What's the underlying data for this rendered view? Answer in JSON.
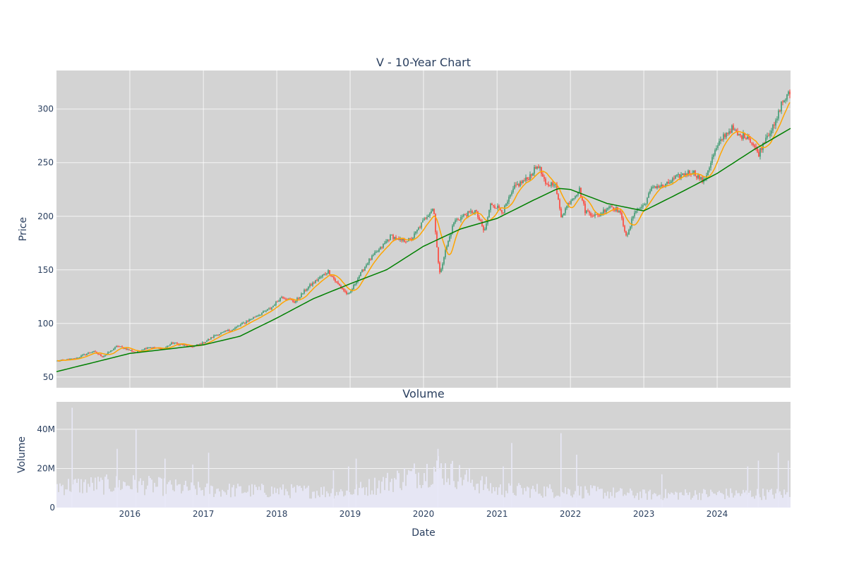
{
  "chart_data": [
    {
      "type": "candlestick",
      "title": "V - 10-Year Chart",
      "ylabel": "Price",
      "ylim": [
        40,
        336
      ],
      "xlim": [
        "2015-01-01",
        "2024-12-31"
      ],
      "y_ticks": [
        50,
        100,
        150,
        200,
        250,
        300
      ],
      "y_tick_labels": [
        "50",
        "100",
        "150",
        "200",
        "250",
        "300"
      ],
      "grid": true,
      "colors": {
        "background": "#d3d3d3",
        "up": "#3d9970",
        "down": "#ff4136",
        "short_ma": "#ffa500",
        "long_ma": "#008000"
      },
      "price_path": [
        [
          "2015-01-01",
          65
        ],
        [
          "2015-04-01",
          67
        ],
        [
          "2015-07-01",
          74
        ],
        [
          "2015-08-20",
          69
        ],
        [
          "2015-11-01",
          79
        ],
        [
          "2016-02-01",
          73
        ],
        [
          "2016-04-01",
          78
        ],
        [
          "2016-06-15",
          76
        ],
        [
          "2016-08-01",
          82
        ],
        [
          "2016-11-01",
          78
        ],
        [
          "2017-01-01",
          82
        ],
        [
          "2017-03-01",
          89
        ],
        [
          "2017-06-01",
          95
        ],
        [
          "2017-09-01",
          105
        ],
        [
          "2017-12-01",
          114
        ],
        [
          "2018-01-25",
          125
        ],
        [
          "2018-04-01",
          120
        ],
        [
          "2018-06-01",
          133
        ],
        [
          "2018-09-15",
          149
        ],
        [
          "2018-10-25",
          138
        ],
        [
          "2018-12-25",
          126
        ],
        [
          "2019-02-01",
          140
        ],
        [
          "2019-04-01",
          158
        ],
        [
          "2019-06-01",
          170
        ],
        [
          "2019-07-25",
          182
        ],
        [
          "2019-09-01",
          177
        ],
        [
          "2019-11-01",
          178
        ],
        [
          "2020-01-15",
          200
        ],
        [
          "2020-02-20",
          208
        ],
        [
          "2020-03-20",
          145
        ],
        [
          "2020-04-15",
          165
        ],
        [
          "2020-06-01",
          195
        ],
        [
          "2020-08-01",
          202
        ],
        [
          "2020-09-15",
          205
        ],
        [
          "2020-10-30",
          185
        ],
        [
          "2020-12-01",
          212
        ],
        [
          "2021-02-01",
          205
        ],
        [
          "2021-04-01",
          228
        ],
        [
          "2021-06-01",
          235
        ],
        [
          "2021-07-25",
          248
        ],
        [
          "2021-09-01",
          228
        ],
        [
          "2021-10-15",
          232
        ],
        [
          "2021-11-15",
          200
        ],
        [
          "2022-01-01",
          215
        ],
        [
          "2022-02-15",
          225
        ],
        [
          "2022-03-15",
          205
        ],
        [
          "2022-05-15",
          200
        ],
        [
          "2022-07-15",
          210
        ],
        [
          "2022-09-01",
          205
        ],
        [
          "2022-10-10",
          180
        ],
        [
          "2022-11-15",
          205
        ],
        [
          "2023-01-01",
          210
        ],
        [
          "2023-02-15",
          228
        ],
        [
          "2023-04-15",
          228
        ],
        [
          "2023-06-01",
          235
        ],
        [
          "2023-07-25",
          240
        ],
        [
          "2023-09-01",
          242
        ],
        [
          "2023-10-25",
          232
        ],
        [
          "2023-12-15",
          258
        ],
        [
          "2024-02-01",
          275
        ],
        [
          "2024-03-15",
          282
        ],
        [
          "2024-04-15",
          275
        ],
        [
          "2024-06-01",
          275
        ],
        [
          "2024-07-25",
          258
        ],
        [
          "2024-09-01",
          275
        ],
        [
          "2024-10-15",
          285
        ],
        [
          "2024-11-15",
          305
        ],
        [
          "2024-12-31",
          316
        ]
      ],
      "long_ma_path": [
        [
          "2015-01-01",
          55
        ],
        [
          "2016-01-01",
          72
        ],
        [
          "2017-01-01",
          80
        ],
        [
          "2017-07-01",
          88
        ],
        [
          "2018-01-01",
          105
        ],
        [
          "2018-07-01",
          123
        ],
        [
          "2019-01-01",
          137
        ],
        [
          "2019-07-01",
          150
        ],
        [
          "2020-01-01",
          172
        ],
        [
          "2020-04-01",
          180
        ],
        [
          "2020-07-01",
          188
        ],
        [
          "2021-01-01",
          198
        ],
        [
          "2021-07-01",
          215
        ],
        [
          "2021-11-01",
          226
        ],
        [
          "2022-01-01",
          225
        ],
        [
          "2022-07-01",
          212
        ],
        [
          "2023-01-01",
          205
        ],
        [
          "2023-07-01",
          222
        ],
        [
          "2024-01-01",
          240
        ],
        [
          "2024-07-01",
          262
        ],
        [
          "2024-12-31",
          282
        ]
      ]
    },
    {
      "type": "bar",
      "title": "Volume",
      "xlabel": "Date",
      "ylabel": "Volume",
      "ylim": [
        0,
        54000000
      ],
      "y_ticks": [
        0,
        20000000,
        40000000
      ],
      "y_tick_labels": [
        "0",
        "20M",
        "40M"
      ],
      "x_ticks": [
        "2016-01-01",
        "2017-01-01",
        "2018-01-01",
        "2019-01-01",
        "2020-01-01",
        "2021-01-01",
        "2022-01-01",
        "2023-01-01",
        "2024-01-01"
      ],
      "x_tick_labels": [
        "2016",
        "2017",
        "2018",
        "2019",
        "2020",
        "2021",
        "2022",
        "2023",
        "2024"
      ],
      "grid": true,
      "colors": {
        "background": "#d3d3d3",
        "bar": "#e8e8f7"
      },
      "baseline_volume": [
        [
          "2015-01-01",
          11000000
        ],
        [
          "2016-01-01",
          12000000
        ],
        [
          "2017-01-01",
          9000000
        ],
        [
          "2018-01-01",
          8500000
        ],
        [
          "2019-01-01",
          8000000
        ],
        [
          "2020-03-15",
          20000000
        ],
        [
          "2021-01-01",
          9000000
        ],
        [
          "2022-01-01",
          8500000
        ],
        [
          "2023-01-01",
          6500000
        ],
        [
          "2024-01-01",
          7000000
        ],
        [
          "2024-12-31",
          7000000
        ]
      ],
      "volume_spikes": [
        [
          "2015-03-20",
          51000000
        ],
        [
          "2015-10-30",
          30000000
        ],
        [
          "2016-02-01",
          40000000
        ],
        [
          "2016-06-24",
          25000000
        ],
        [
          "2016-11-09",
          22000000
        ],
        [
          "2017-01-27",
          28000000
        ],
        [
          "2018-10-10",
          19000000
        ],
        [
          "2018-12-24",
          21000000
        ],
        [
          "2019-01-31",
          25000000
        ],
        [
          "2020-03-13",
          30000000
        ],
        [
          "2021-02-01",
          21000000
        ],
        [
          "2021-03-15",
          33000000
        ],
        [
          "2021-11-15",
          38000000
        ],
        [
          "2022-02-01",
          27000000
        ],
        [
          "2023-04-01",
          17000000
        ],
        [
          "2024-06-01",
          21000000
        ],
        [
          "2024-07-24",
          24000000
        ],
        [
          "2024-10-31",
          28000000
        ],
        [
          "2024-12-20",
          24000000
        ]
      ]
    }
  ]
}
